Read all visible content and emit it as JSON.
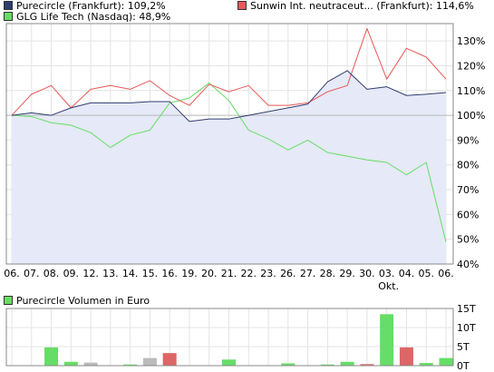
{
  "chart_data": [
    {
      "type": "line",
      "legend": [
        {
          "label": "Purecircle (Frankfurt): 109,2%",
          "color": "#2f3e6e"
        },
        {
          "label": "Sunwin Int. neutraceut... (Frankfurt): 114,6%",
          "color": "#e85858"
        },
        {
          "label": "GLG Life Tech (Nasdaq): 48,9%",
          "color": "#66dd66"
        }
      ],
      "x_labels": [
        "06.",
        "07.",
        "08.",
        "09.",
        "12.",
        "13.",
        "14.",
        "15.",
        "16.",
        "19.",
        "20.",
        "21.",
        "22.",
        "23.",
        "26.",
        "27.",
        "28.",
        "29.",
        "30.",
        "03.",
        "04.",
        "05.",
        "06."
      ],
      "x_sublabel": {
        "index": 19,
        "text": "Okt."
      },
      "y_ticks": [
        40,
        50,
        60,
        70,
        80,
        90,
        100,
        110,
        120,
        130
      ],
      "y_tick_labels": [
        "40%",
        "50%",
        "60%",
        "70%",
        "80%",
        "90%",
        "100%",
        "110%",
        "120%",
        "130%"
      ],
      "ylim": [
        40,
        137
      ],
      "baseline": 100,
      "grid": true,
      "series": [
        {
          "name": "Purecircle (Frankfurt)",
          "color": "#2f3e6e",
          "fill": "#e6e9f7",
          "values": [
            100,
            101,
            100,
            103,
            105,
            105,
            105,
            105.5,
            105.5,
            97.5,
            98.5,
            98.5,
            100,
            101.5,
            103,
            104.5,
            113.5,
            118,
            110.5,
            111.5,
            108,
            108.5,
            109.2
          ]
        },
        {
          "name": "Sunwin Int. neutraceut... (Frankfurt)",
          "color": "#e85858",
          "values": [
            100,
            108.5,
            112,
            103,
            110.5,
            112,
            110.5,
            114,
            108,
            104,
            112.5,
            109.5,
            112,
            104,
            104,
            105,
            109.5,
            112,
            135,
            114.6,
            127,
            123.5,
            114.6
          ]
        },
        {
          "name": "GLG Life Tech (Nasdaq)",
          "color": "#66dd66",
          "values": [
            100,
            99.5,
            97,
            96,
            93,
            87,
            92,
            94,
            105,
            107,
            113,
            106,
            94,
            90.5,
            86,
            90,
            85,
            83.5,
            82,
            81,
            76,
            81,
            48.9
          ]
        }
      ]
    },
    {
      "type": "bar",
      "legend": [
        {
          "label": "Purecircle Volumen in Euro",
          "color": "#66dd66"
        }
      ],
      "y_ticks": [
        0,
        5,
        10,
        15
      ],
      "y_tick_labels": [
        "0T",
        "5T",
        "10T",
        "15T"
      ],
      "ylim": [
        0,
        15
      ],
      "values": [
        0,
        0,
        4.8,
        1,
        0.8,
        0,
        0.3,
        2,
        3.3,
        0,
        0,
        1.6,
        0,
        0,
        0.6,
        0,
        0.3,
        1,
        0.4,
        13.5,
        4.8,
        0.7,
        2
      ],
      "colors": [
        "#66dd66",
        "#66dd66",
        "#66dd66",
        "#66dd66",
        "#bbbbbb",
        "#66dd66",
        "#66dd66",
        "#bbbbbb",
        "#dd6666",
        "#66dd66",
        "#66dd66",
        "#66dd66",
        "#66dd66",
        "#66dd66",
        "#66dd66",
        "#66dd66",
        "#66dd66",
        "#66dd66",
        "#dd6666",
        "#66dd66",
        "#dd6666",
        "#66dd66",
        "#66dd66"
      ]
    }
  ]
}
